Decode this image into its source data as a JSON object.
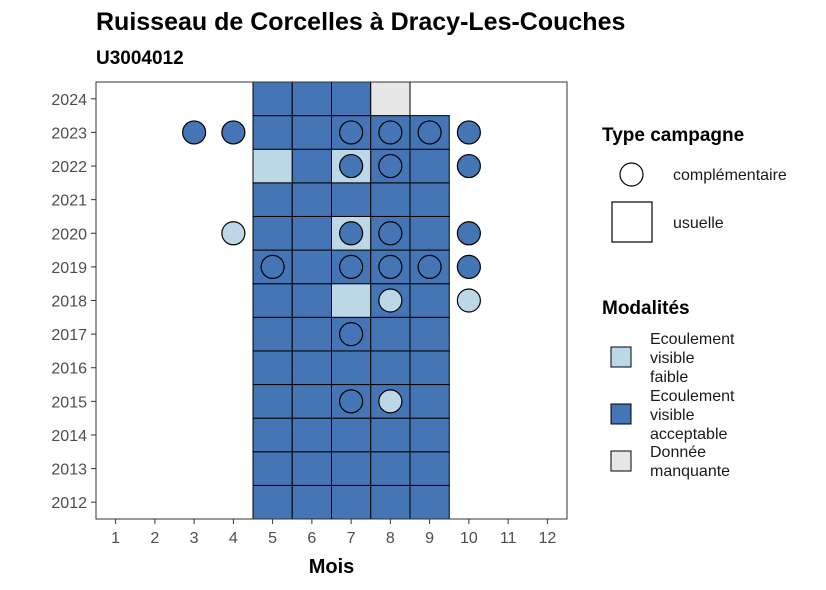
{
  "chart_data": {
    "type": "heatmap",
    "title": "Ruisseau de Corcelles à Dracy-Les-Couches",
    "subtitle": "U3004012",
    "xlabel": "Mois",
    "ylabel": "",
    "x_ticks": [
      "1",
      "2",
      "3",
      "4",
      "5",
      "6",
      "7",
      "8",
      "9",
      "10",
      "11",
      "12"
    ],
    "y_ticks": [
      "2012",
      "2013",
      "2014",
      "2015",
      "2016",
      "2017",
      "2018",
      "2019",
      "2020",
      "2021",
      "2022",
      "2023",
      "2024"
    ],
    "xlim": [
      0.5,
      12.5
    ],
    "ylim": [
      2011.5,
      2024.5
    ],
    "colors": {
      "Ecoulement visible faible": "#bcd7e6",
      "Ecoulement visible acceptable": "#4575b4",
      "Donnée manquante": "#e6e6e6"
    },
    "usuelle": [
      {
        "year": 2012,
        "month": 5,
        "modalite": "Ecoulement visible acceptable"
      },
      {
        "year": 2012,
        "month": 6,
        "modalite": "Ecoulement visible acceptable"
      },
      {
        "year": 2012,
        "month": 7,
        "modalite": "Ecoulement visible acceptable"
      },
      {
        "year": 2012,
        "month": 8,
        "modalite": "Ecoulement visible acceptable"
      },
      {
        "year": 2012,
        "month": 9,
        "modalite": "Ecoulement visible acceptable"
      },
      {
        "year": 2013,
        "month": 5,
        "modalite": "Ecoulement visible acceptable"
      },
      {
        "year": 2013,
        "month": 6,
        "modalite": "Ecoulement visible acceptable"
      },
      {
        "year": 2013,
        "month": 7,
        "modalite": "Ecoulement visible acceptable"
      },
      {
        "year": 2013,
        "month": 8,
        "modalite": "Ecoulement visible acceptable"
      },
      {
        "year": 2013,
        "month": 9,
        "modalite": "Ecoulement visible acceptable"
      },
      {
        "year": 2014,
        "month": 5,
        "modalite": "Ecoulement visible acceptable"
      },
      {
        "year": 2014,
        "month": 6,
        "modalite": "Ecoulement visible acceptable"
      },
      {
        "year": 2014,
        "month": 7,
        "modalite": "Ecoulement visible acceptable"
      },
      {
        "year": 2014,
        "month": 8,
        "modalite": "Ecoulement visible acceptable"
      },
      {
        "year": 2014,
        "month": 9,
        "modalite": "Ecoulement visible acceptable"
      },
      {
        "year": 2015,
        "month": 5,
        "modalite": "Ecoulement visible acceptable"
      },
      {
        "year": 2015,
        "month": 6,
        "modalite": "Ecoulement visible acceptable"
      },
      {
        "year": 2015,
        "month": 7,
        "modalite": "Ecoulement visible acceptable"
      },
      {
        "year": 2015,
        "month": 8,
        "modalite": "Ecoulement visible acceptable"
      },
      {
        "year": 2015,
        "month": 9,
        "modalite": "Ecoulement visible acceptable"
      },
      {
        "year": 2016,
        "month": 5,
        "modalite": "Ecoulement visible acceptable"
      },
      {
        "year": 2016,
        "month": 6,
        "modalite": "Ecoulement visible acceptable"
      },
      {
        "year": 2016,
        "month": 7,
        "modalite": "Ecoulement visible acceptable"
      },
      {
        "year": 2016,
        "month": 8,
        "modalite": "Ecoulement visible acceptable"
      },
      {
        "year": 2016,
        "month": 9,
        "modalite": "Ecoulement visible acceptable"
      },
      {
        "year": 2017,
        "month": 5,
        "modalite": "Ecoulement visible acceptable"
      },
      {
        "year": 2017,
        "month": 6,
        "modalite": "Ecoulement visible acceptable"
      },
      {
        "year": 2017,
        "month": 7,
        "modalite": "Ecoulement visible acceptable"
      },
      {
        "year": 2017,
        "month": 8,
        "modalite": "Ecoulement visible acceptable"
      },
      {
        "year": 2017,
        "month": 9,
        "modalite": "Ecoulement visible acceptable"
      },
      {
        "year": 2018,
        "month": 5,
        "modalite": "Ecoulement visible acceptable"
      },
      {
        "year": 2018,
        "month": 6,
        "modalite": "Ecoulement visible acceptable"
      },
      {
        "year": 2018,
        "month": 7,
        "modalite": "Ecoulement visible faible"
      },
      {
        "year": 2018,
        "month": 8,
        "modalite": "Ecoulement visible acceptable"
      },
      {
        "year": 2018,
        "month": 9,
        "modalite": "Ecoulement visible acceptable"
      },
      {
        "year": 2019,
        "month": 5,
        "modalite": "Ecoulement visible acceptable"
      },
      {
        "year": 2019,
        "month": 6,
        "modalite": "Ecoulement visible acceptable"
      },
      {
        "year": 2019,
        "month": 7,
        "modalite": "Ecoulement visible acceptable"
      },
      {
        "year": 2019,
        "month": 8,
        "modalite": "Ecoulement visible acceptable"
      },
      {
        "year": 2019,
        "month": 9,
        "modalite": "Ecoulement visible acceptable"
      },
      {
        "year": 2020,
        "month": 5,
        "modalite": "Ecoulement visible acceptable"
      },
      {
        "year": 2020,
        "month": 6,
        "modalite": "Ecoulement visible acceptable"
      },
      {
        "year": 2020,
        "month": 7,
        "modalite": "Ecoulement visible faible"
      },
      {
        "year": 2020,
        "month": 8,
        "modalite": "Ecoulement visible acceptable"
      },
      {
        "year": 2020,
        "month": 9,
        "modalite": "Ecoulement visible acceptable"
      },
      {
        "year": 2021,
        "month": 5,
        "modalite": "Ecoulement visible acceptable"
      },
      {
        "year": 2021,
        "month": 6,
        "modalite": "Ecoulement visible acceptable"
      },
      {
        "year": 2021,
        "month": 7,
        "modalite": "Ecoulement visible acceptable"
      },
      {
        "year": 2021,
        "month": 8,
        "modalite": "Ecoulement visible acceptable"
      },
      {
        "year": 2021,
        "month": 9,
        "modalite": "Ecoulement visible acceptable"
      },
      {
        "year": 2022,
        "month": 5,
        "modalite": "Ecoulement visible faible"
      },
      {
        "year": 2022,
        "month": 6,
        "modalite": "Ecoulement visible acceptable"
      },
      {
        "year": 2022,
        "month": 7,
        "modalite": "Ecoulement visible faible"
      },
      {
        "year": 2022,
        "month": 8,
        "modalite": "Ecoulement visible acceptable"
      },
      {
        "year": 2022,
        "month": 9,
        "modalite": "Ecoulement visible acceptable"
      },
      {
        "year": 2023,
        "month": 5,
        "modalite": "Ecoulement visible acceptable"
      },
      {
        "year": 2023,
        "month": 6,
        "modalite": "Ecoulement visible acceptable"
      },
      {
        "year": 2023,
        "month": 7,
        "modalite": "Ecoulement visible acceptable"
      },
      {
        "year": 2023,
        "month": 8,
        "modalite": "Ecoulement visible acceptable"
      },
      {
        "year": 2023,
        "month": 9,
        "modalite": "Ecoulement visible acceptable"
      },
      {
        "year": 2024,
        "month": 5,
        "modalite": "Ecoulement visible acceptable"
      },
      {
        "year": 2024,
        "month": 6,
        "modalite": "Ecoulement visible acceptable"
      },
      {
        "year": 2024,
        "month": 7,
        "modalite": "Ecoulement visible acceptable"
      },
      {
        "year": 2024,
        "month": 8,
        "modalite": "Donnée manquante"
      }
    ],
    "complementaire": [
      {
        "year": 2015,
        "month": 7,
        "modalite": "Ecoulement visible acceptable"
      },
      {
        "year": 2015,
        "month": 8,
        "modalite": "Ecoulement visible faible"
      },
      {
        "year": 2017,
        "month": 7,
        "modalite": "Ecoulement visible acceptable"
      },
      {
        "year": 2018,
        "month": 8,
        "modalite": "Ecoulement visible faible"
      },
      {
        "year": 2018,
        "month": 10,
        "modalite": "Ecoulement visible faible"
      },
      {
        "year": 2019,
        "month": 5,
        "modalite": "Ecoulement visible acceptable"
      },
      {
        "year": 2019,
        "month": 7,
        "modalite": "Ecoulement visible acceptable"
      },
      {
        "year": 2019,
        "month": 8,
        "modalite": "Ecoulement visible acceptable"
      },
      {
        "year": 2019,
        "month": 9,
        "modalite": "Ecoulement visible acceptable"
      },
      {
        "year": 2019,
        "month": 10,
        "modalite": "Ecoulement visible acceptable"
      },
      {
        "year": 2020,
        "month": 4,
        "modalite": "Ecoulement visible faible"
      },
      {
        "year": 2020,
        "month": 7,
        "modalite": "Ecoulement visible acceptable"
      },
      {
        "year": 2020,
        "month": 8,
        "modalite": "Ecoulement visible acceptable"
      },
      {
        "year": 2020,
        "month": 10,
        "modalite": "Ecoulement visible acceptable"
      },
      {
        "year": 2022,
        "month": 7,
        "modalite": "Ecoulement visible acceptable"
      },
      {
        "year": 2022,
        "month": 8,
        "modalite": "Ecoulement visible acceptable"
      },
      {
        "year": 2022,
        "month": 10,
        "modalite": "Ecoulement visible acceptable"
      },
      {
        "year": 2023,
        "month": 3,
        "modalite": "Ecoulement visible acceptable"
      },
      {
        "year": 2023,
        "month": 4,
        "modalite": "Ecoulement visible acceptable"
      },
      {
        "year": 2023,
        "month": 7,
        "modalite": "Ecoulement visible acceptable"
      },
      {
        "year": 2023,
        "month": 8,
        "modalite": "Ecoulement visible acceptable"
      },
      {
        "year": 2023,
        "month": 9,
        "modalite": "Ecoulement visible acceptable"
      },
      {
        "year": 2023,
        "month": 10,
        "modalite": "Ecoulement visible acceptable"
      }
    ],
    "legend": {
      "type_title": "Type campagne",
      "type_items": [
        {
          "shape": "circle",
          "label": "complémentaire"
        },
        {
          "shape": "square",
          "label": "usuelle"
        }
      ],
      "modalites_title": "Modalités",
      "modalites_items": [
        {
          "lines": [
            "Ecoulement",
            "visible",
            "faible"
          ],
          "color": "#bcd7e6"
        },
        {
          "lines": [
            "Ecoulement",
            "visible",
            "acceptable"
          ],
          "color": "#4575b4"
        },
        {
          "lines": [
            "Donnée",
            "manquante"
          ],
          "color": "#e6e6e6"
        }
      ],
      "placement": "right"
    },
    "grid": false
  }
}
